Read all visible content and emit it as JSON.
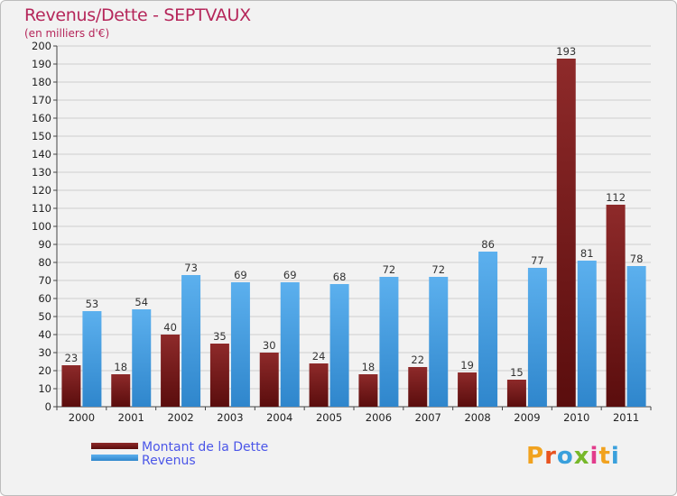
{
  "header": {
    "title": "Revenus/Dette - SEPTVAUX",
    "subtitle": "(en milliers d'€)"
  },
  "legend": {
    "debt_label": "Montant de la Dette",
    "revenue_label": "Revenus"
  },
  "logo": {
    "letters": [
      "P",
      "r",
      "o",
      "x",
      "i",
      "t",
      "i"
    ],
    "colors": [
      "#f1a21f",
      "#e8531f",
      "#3aa0dc",
      "#77b82a",
      "#e23c8c",
      "#f1a21f",
      "#3aa0dc"
    ]
  },
  "colors": {
    "debt": "#7a1818",
    "debt_light": "#8e2a2a",
    "revenue": "#4aa2e6",
    "revenue_light": "#5cb0ee"
  },
  "chart_data": {
    "type": "bar",
    "title": "Revenus/Dette - SEPTVAUX",
    "subtitle": "(en milliers d'€)",
    "categories": [
      "2000",
      "2001",
      "2002",
      "2003",
      "2004",
      "2005",
      "2006",
      "2007",
      "2008",
      "2009",
      "2010",
      "2011"
    ],
    "series": [
      {
        "name": "Montant de la Dette",
        "values": [
          23,
          18,
          40,
          35,
          30,
          24,
          18,
          22,
          19,
          15,
          193,
          112
        ]
      },
      {
        "name": "Revenus",
        "values": [
          53,
          54,
          73,
          69,
          69,
          68,
          72,
          72,
          86,
          77,
          81,
          78
        ]
      }
    ],
    "yticks": [
      0,
      10,
      20,
      30,
      40,
      50,
      60,
      70,
      80,
      90,
      100,
      110,
      120,
      130,
      140,
      150,
      160,
      170,
      180,
      190,
      200
    ],
    "ylim": [
      0,
      200
    ],
    "grid": true,
    "legend_position": "bottom-left"
  }
}
